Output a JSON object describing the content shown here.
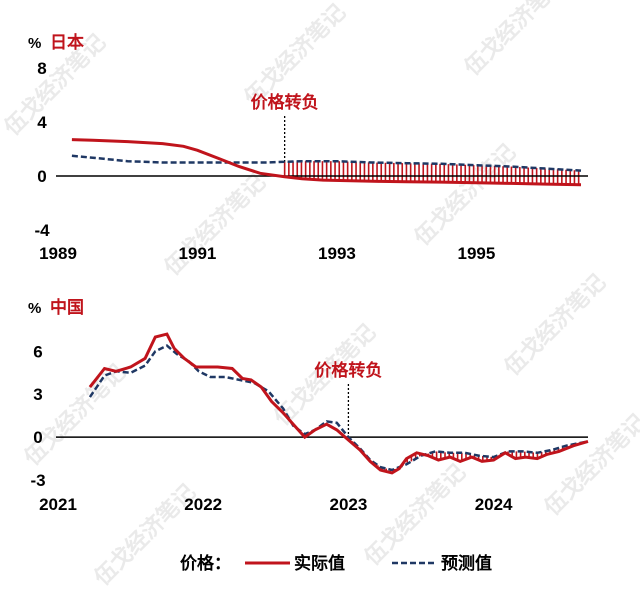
{
  "legend": {
    "prefix": "价格：",
    "actual": "实际值",
    "forecast": "预测值",
    "actual_color": "#c0141c",
    "forecast_color": "#1f3864"
  },
  "watermark": "伍戈经济笔记",
  "chart_data": [
    {
      "type": "line",
      "title": "日本",
      "unit": "%",
      "annotation": "价格转负",
      "annotation_x": 1992.25,
      "x_ticks": [
        "1989",
        "1991",
        "1993",
        "1995"
      ],
      "x_tick_values": [
        1989,
        1991,
        1993,
        1995
      ],
      "xlim": [
        1989,
        1996.6
      ],
      "y_ticks": [
        "8",
        "4",
        "0",
        "-4"
      ],
      "y_tick_values": [
        8,
        4,
        0,
        -4
      ],
      "ylim": [
        -4,
        8
      ],
      "series": [
        {
          "name": "实际值",
          "x": [
            1989.2,
            1989.5,
            1990.0,
            1990.5,
            1990.8,
            1991.0,
            1991.3,
            1991.6,
            1991.9,
            1992.25,
            1992.5,
            1992.8,
            1993.2,
            1993.6,
            1994.0,
            1994.5,
            1995.0,
            1995.5,
            1996.0,
            1996.5
          ],
          "y": [
            2.7,
            2.65,
            2.55,
            2.4,
            2.2,
            1.9,
            1.3,
            0.7,
            0.2,
            -0.05,
            -0.2,
            -0.3,
            -0.35,
            -0.4,
            -0.42,
            -0.45,
            -0.5,
            -0.55,
            -0.6,
            -0.65
          ]
        },
        {
          "name": "预测值",
          "x": [
            1989.2,
            1989.6,
            1990.0,
            1990.5,
            1991.0,
            1991.5,
            1992.0,
            1992.25,
            1992.5,
            1993.0,
            1993.5,
            1994.0,
            1994.5,
            1995.0,
            1995.5,
            1996.0,
            1996.5
          ],
          "y": [
            1.5,
            1.3,
            1.1,
            1.0,
            1.0,
            1.0,
            1.0,
            1.05,
            1.1,
            1.1,
            1.0,
            0.95,
            0.9,
            0.8,
            0.7,
            0.55,
            0.4
          ]
        }
      ]
    },
    {
      "type": "line",
      "title": "中国",
      "unit": "%",
      "annotation": "价格转负",
      "annotation_x": 2023.0,
      "x_ticks": [
        "2021",
        "2022",
        "2023",
        "2024"
      ],
      "x_tick_values": [
        2021,
        2022,
        2023,
        2024
      ],
      "xlim": [
        2021,
        2024.65
      ],
      "y_ticks": [
        "6",
        "3",
        "0",
        "-3"
      ],
      "y_tick_values": [
        6,
        3,
        0,
        -3
      ],
      "ylim": [
        -3,
        7
      ],
      "series": [
        {
          "name": "实际值",
          "x": [
            2021.22,
            2021.32,
            2021.4,
            2021.5,
            2021.6,
            2021.67,
            2021.75,
            2021.8,
            2021.87,
            2021.95,
            2022.0,
            2022.1,
            2022.2,
            2022.27,
            2022.33,
            2022.4,
            2022.47,
            2022.55,
            2022.62,
            2022.7,
            2022.77,
            2022.85,
            2022.92,
            2023.0,
            2023.08,
            2023.15,
            2023.22,
            2023.3,
            2023.35,
            2023.4,
            2023.47,
            2023.55,
            2023.62,
            2023.7,
            2023.77,
            2023.85,
            2023.92,
            2024.0,
            2024.08,
            2024.15,
            2024.22,
            2024.3,
            2024.37,
            2024.45,
            2024.55,
            2024.65
          ],
          "y": [
            3.5,
            4.8,
            4.6,
            4.9,
            5.5,
            7.0,
            7.2,
            6.2,
            5.5,
            4.9,
            4.9,
            4.9,
            4.8,
            4.1,
            4.0,
            3.5,
            2.5,
            1.7,
            0.9,
            0.0,
            0.5,
            0.9,
            0.5,
            -0.2,
            -0.9,
            -1.7,
            -2.3,
            -2.5,
            -2.2,
            -1.5,
            -1.1,
            -1.3,
            -1.6,
            -1.4,
            -1.7,
            -1.4,
            -1.7,
            -1.6,
            -1.1,
            -1.5,
            -1.4,
            -1.5,
            -1.2,
            -1.0,
            -0.6,
            -0.3
          ]
        },
        {
          "name": "预测值",
          "x": [
            2021.22,
            2021.32,
            2021.4,
            2021.5,
            2021.6,
            2021.67,
            2021.75,
            2021.82,
            2021.9,
            2021.97,
            2022.05,
            2022.15,
            2022.25,
            2022.35,
            2022.45,
            2022.55,
            2022.62,
            2022.7,
            2022.77,
            2022.85,
            2022.92,
            2023.0,
            2023.08,
            2023.15,
            2023.22,
            2023.3,
            2023.4,
            2023.5,
            2023.6,
            2023.7,
            2023.8,
            2023.9,
            2024.0,
            2024.1,
            2024.2,
            2024.3,
            2024.4,
            2024.5,
            2024.65
          ],
          "y": [
            2.8,
            4.3,
            4.6,
            4.5,
            5.0,
            6.0,
            6.4,
            5.8,
            5.3,
            4.6,
            4.2,
            4.2,
            4.0,
            3.8,
            3.2,
            2.0,
            0.8,
            0.2,
            0.5,
            1.1,
            1.0,
            0.0,
            -0.8,
            -1.6,
            -2.1,
            -2.3,
            -1.9,
            -1.3,
            -1.0,
            -1.1,
            -1.1,
            -1.3,
            -1.4,
            -1.0,
            -1.0,
            -1.1,
            -0.9,
            -0.6,
            -0.3
          ]
        }
      ]
    }
  ]
}
